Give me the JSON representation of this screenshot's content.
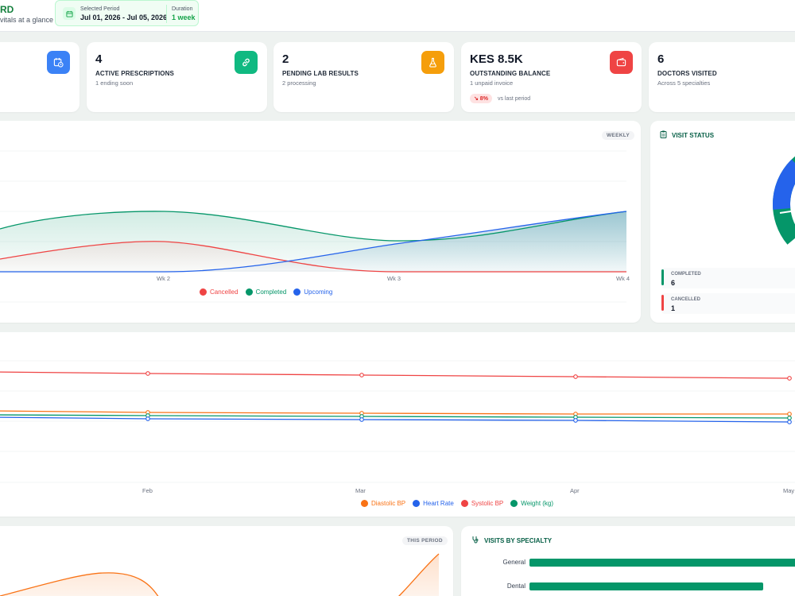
{
  "header": {
    "title": "RD",
    "subtitle": "vitals at a glance",
    "period_label": "Selected Period",
    "period_value": "Jul 01, 2026 - Jul 05, 2026",
    "duration_label": "Duration",
    "duration_value": "1 week"
  },
  "stats": [
    {
      "value": "4",
      "label": "ACTIVE PRESCRIPTIONS",
      "sub": "1 ending soon",
      "icon": "link-icon",
      "color": "#10b981"
    },
    {
      "value": "2",
      "label": "PENDING LAB RESULTS",
      "sub": "2 processing",
      "icon": "flask-icon",
      "color": "#f59e0b"
    },
    {
      "value": "KES 8.5K",
      "label": "OUTSTANDING BALANCE",
      "sub": "1 unpaid invoice",
      "icon": "wallet-icon",
      "color": "#ef4444",
      "trend": "↘ 8%",
      "trend_text": "vs last period"
    },
    {
      "value": "6",
      "label": "DOCTORS VISITED",
      "sub": "Across 5 specialties"
    }
  ],
  "first_card_icon": {
    "icon": "calendar-clock-icon",
    "color": "#3b82f6"
  },
  "visits_chart": {
    "badge": "WEEKLY",
    "chart_data": {
      "type": "area",
      "x": [
        "Wk 2",
        "Wk 3",
        "Wk 4"
      ],
      "series": [
        {
          "name": "Cancelled",
          "color": "#ef4444"
        },
        {
          "name": "Completed",
          "color": "#059669"
        },
        {
          "name": "Upcoming",
          "color": "#2563eb"
        }
      ]
    }
  },
  "visit_status": {
    "title": "VISIT STATUS",
    "items": [
      {
        "label": "COMPLETED",
        "value": "6",
        "color": "#059669"
      },
      {
        "label": "CANCELLED",
        "value": "1",
        "color": "#ef4444"
      }
    ],
    "pie_colors": [
      "#059669",
      "#2563eb"
    ]
  },
  "vitals_chart": {
    "chart_data": {
      "type": "line",
      "x": [
        "Feb",
        "Mar",
        "Apr",
        "May"
      ],
      "series": [
        {
          "name": "Diastolic BP",
          "color": "#f97316"
        },
        {
          "name": "Heart Rate",
          "color": "#2563eb"
        },
        {
          "name": "Systolic BP",
          "color": "#ef4444"
        },
        {
          "name": "Weight (kg)",
          "color": "#059669"
        }
      ]
    }
  },
  "spending_card": {
    "badge": "THIS PERIOD"
  },
  "specialty": {
    "title": "VISITS BY SPECIALTY",
    "chart_data": {
      "type": "bar",
      "categories": [
        "General",
        "Dental"
      ],
      "color": "#059669"
    }
  }
}
